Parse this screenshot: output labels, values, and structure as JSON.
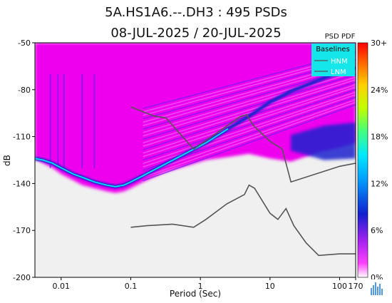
{
  "chart_data": {
    "type": "heatmap",
    "title_line1": "5A.HS1A6.--.DH3 : 495 PSDs",
    "title_line2": "08-JUL-2025 / 20-JUL-2025",
    "xlabel": "Period (Sec)",
    "ylabel": "dB",
    "x_scale": "log",
    "xlim": [
      0.0042,
      170
    ],
    "ylim": [
      -200,
      -50
    ],
    "x_ticks": [
      {
        "value": 0.01,
        "label": "0.01"
      },
      {
        "value": 0.1,
        "label": "0.1"
      },
      {
        "value": 1,
        "label": "1"
      },
      {
        "value": 10,
        "label": "10"
      },
      {
        "value": 100,
        "label": "100"
      },
      {
        "value": 170,
        "label": "170"
      }
    ],
    "y_ticks": [
      {
        "value": -50,
        "label": "-50"
      },
      {
        "value": -80,
        "label": "-80"
      },
      {
        "value": -110,
        "label": "-110"
      },
      {
        "value": -140,
        "label": "-140"
      },
      {
        "value": -170,
        "label": "-170"
      },
      {
        "value": -200,
        "label": "-200"
      }
    ],
    "colorbar": {
      "title": "PSD PDF",
      "ticks": [
        "30+",
        "24%",
        "18%",
        "12%",
        "6%",
        "0%"
      ]
    },
    "legend": {
      "title": "Baselines",
      "placement": "top-right",
      "items": [
        "HNM",
        "LNM"
      ]
    },
    "series": [
      {
        "name": "HNM",
        "color": "#555555",
        "points": [
          [
            0.1,
            -91
          ],
          [
            0.22,
            -97
          ],
          [
            0.32,
            -98
          ],
          [
            0.8,
            -118
          ],
          [
            3.8,
            -97
          ],
          [
            4.6,
            -96
          ],
          [
            5.8,
            -103
          ],
          [
            10,
            -113
          ],
          [
            15,
            -118
          ],
          [
            20,
            -139
          ],
          [
            100,
            -129
          ],
          [
            170,
            -127
          ]
        ]
      },
      {
        "name": "LNM",
        "color": "#555555",
        "points": [
          [
            0.1,
            -168
          ],
          [
            0.17,
            -167
          ],
          [
            0.4,
            -166
          ],
          [
            0.8,
            -168
          ],
          [
            1.2,
            -163
          ],
          [
            2.4,
            -153
          ],
          [
            4.3,
            -147
          ],
          [
            5,
            -141
          ],
          [
            6,
            -143
          ],
          [
            10,
            -159
          ],
          [
            13,
            -163
          ],
          [
            17,
            -156
          ],
          [
            22,
            -167
          ],
          [
            33,
            -178
          ],
          [
            50,
            -186
          ],
          [
            100,
            -185
          ],
          [
            170,
            -185
          ]
        ]
      }
    ],
    "density_colors": {
      "background": "#ee00ee",
      "mid": "#7d1cf3",
      "high": "#1a24cf",
      "peak": "#00e4ff",
      "no_data": "#f0f0f0"
    }
  }
}
